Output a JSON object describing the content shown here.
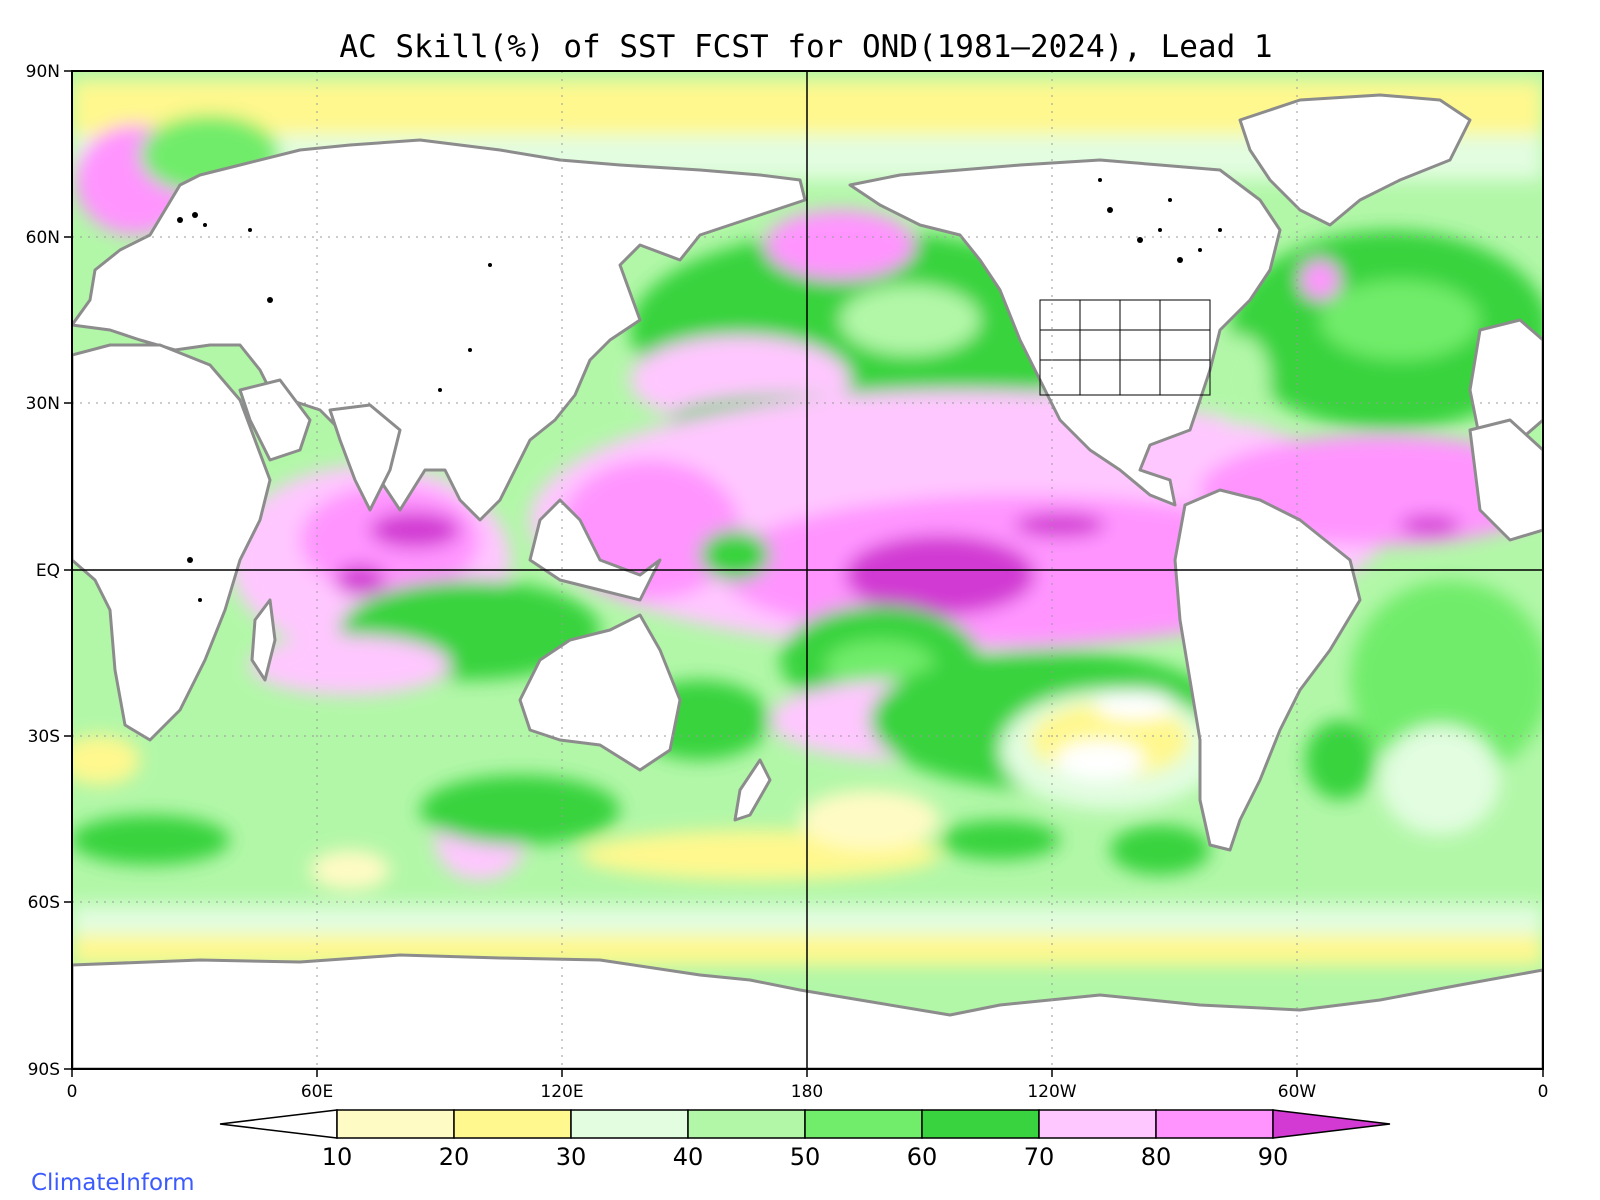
{
  "title": "AC Skill(%) of SST FCST for OND(1981‒2024), Lead 1",
  "credit": "ClimateInform",
  "map": {
    "projection": "equirectangular",
    "lon_range": [
      0,
      360
    ],
    "lat_range": [
      -90,
      90
    ],
    "central_meridian_line": "180",
    "equator_line": "EQ",
    "grid": "dotted",
    "land_color": "#ffffff",
    "coastline_color": "#8c8c8c",
    "lakes_color": "#000000"
  },
  "axes": {
    "y_ticks": [
      "90N",
      "60N",
      "30N",
      "EQ",
      "30S",
      "60S",
      "90S"
    ],
    "x_ticks": [
      "0",
      "60E",
      "120E",
      "180",
      "120W",
      "60W",
      "0"
    ]
  },
  "colorbar": {
    "labels": [
      "10",
      "20",
      "30",
      "40",
      "50",
      "60",
      "70",
      "80",
      "90"
    ],
    "colors": [
      "#ffffff",
      "#fffbc5",
      "#fff88e",
      "#e2fde0",
      "#b2f7a8",
      "#71ec6b",
      "#38d33e",
      "#ffc7ff",
      "#ff94ff",
      "#d23ad3"
    ]
  },
  "legend_features": {
    "below_10": "#ffffff",
    "above_90": "#d23ad3"
  }
}
